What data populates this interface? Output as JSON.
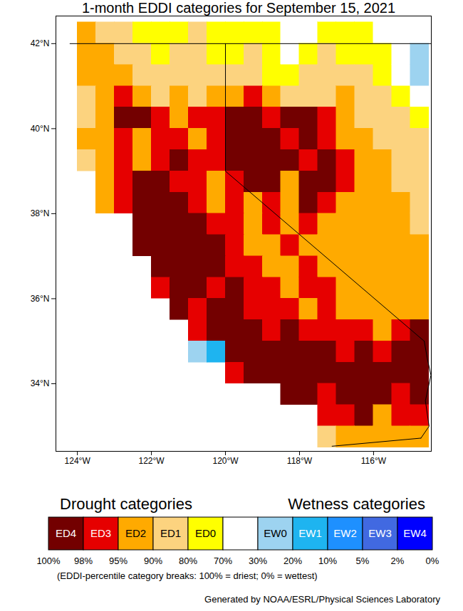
{
  "chart_data": {
    "type": "map",
    "title": "1-month EDDI categories for September 15, 2021",
    "xlim": [
      -124.58,
      -114.44
    ],
    "ylim": [
      32.41,
      42.65
    ],
    "xticks": [
      {
        "value": -124,
        "label": "124°W"
      },
      {
        "value": -122,
        "label": "122°W"
      },
      {
        "value": -120,
        "label": "120°W"
      },
      {
        "value": -118,
        "label": "118°W"
      },
      {
        "value": -116,
        "label": "116°W"
      }
    ],
    "yticks": [
      {
        "value": 34,
        "label": "34°N"
      },
      {
        "value": 36,
        "label": "36°N"
      },
      {
        "value": 38,
        "label": "38°N"
      },
      {
        "value": 40,
        "label": "40°N"
      },
      {
        "value": 42,
        "label": "42°N"
      }
    ],
    "drought_heading": "Drought categories",
    "wetness_heading": "Wetness categories",
    "color_categories": [
      {
        "label": "ED4",
        "color": "#730000"
      },
      {
        "label": "ED3",
        "color": "#e60000"
      },
      {
        "label": "ED2",
        "color": "#ffaa00"
      },
      {
        "label": "ED1",
        "color": "#fcd37f"
      },
      {
        "label": "ED0",
        "color": "#ffff00"
      },
      {
        "label": null,
        "color": "#ffffff"
      },
      {
        "label": "EW0",
        "color": "#9dd3f0"
      },
      {
        "label": "EW1",
        "color": "#1eb4f0"
      },
      {
        "label": "EW2",
        "color": "#1e90ff"
      },
      {
        "label": "EW3",
        "color": "#4169e1"
      },
      {
        "label": "EW4",
        "color": "#0000ff"
      }
    ],
    "category_breaks": [
      "100%",
      "98%",
      "95%",
      "90%",
      "80%",
      "70%",
      "30%",
      "20%",
      "10%",
      "5%",
      "2%",
      "0%"
    ],
    "note": "(EDDI-percentile category breaks: 100% = driest; 0% = wettest)",
    "credit": "Generated by NOAA/ESRL/Physical Sciences Laboratory",
    "cell_lon_range": [
      -124.5,
      -114.5
    ],
    "cell_lat_range": [
      32.5,
      42.5
    ],
    "cells": [
      [
        null,
        2,
        3,
        3,
        4,
        4,
        4,
        3,
        4,
        4,
        4,
        4,
        5,
        5,
        4,
        4,
        4,
        5,
        5,
        5
      ],
      [
        null,
        2,
        2,
        3,
        3,
        4,
        3,
        3,
        4,
        4,
        3,
        4,
        5,
        4,
        3,
        4,
        4,
        4,
        5,
        6
      ],
      [
        null,
        2,
        2,
        2,
        3,
        3,
        3,
        3,
        3,
        3,
        3,
        4,
        4,
        3,
        3,
        3,
        3,
        4,
        5,
        6
      ],
      [
        null,
        3,
        2,
        1,
        2,
        3,
        2,
        3,
        2,
        2,
        1,
        2,
        3,
        3,
        3,
        2,
        3,
        3,
        4,
        5
      ],
      [
        null,
        3,
        2,
        0,
        0,
        1,
        2,
        1,
        1,
        0,
        0,
        1,
        0,
        0,
        1,
        2,
        3,
        3,
        3,
        4
      ],
      [
        null,
        2,
        2,
        1,
        2,
        1,
        1,
        2,
        1,
        0,
        0,
        0,
        1,
        0,
        1,
        2,
        2,
        3,
        3,
        3
      ],
      [
        null,
        3,
        2,
        1,
        2,
        1,
        0,
        1,
        1,
        0,
        0,
        0,
        0,
        1,
        0,
        1,
        2,
        2,
        3,
        3
      ],
      [
        null,
        null,
        2,
        1,
        0,
        0,
        1,
        1,
        2,
        1,
        0,
        0,
        2,
        0,
        0,
        1,
        2,
        2,
        3,
        3
      ],
      [
        null,
        null,
        2,
        1,
        0,
        0,
        0,
        1,
        2,
        1,
        2,
        1,
        2,
        0,
        1,
        2,
        2,
        2,
        2,
        3
      ],
      [
        null,
        null,
        null,
        null,
        0,
        0,
        0,
        0,
        1,
        1,
        2,
        1,
        2,
        1,
        2,
        2,
        2,
        2,
        2,
        3
      ],
      [
        null,
        null,
        null,
        null,
        0,
        0,
        0,
        0,
        0,
        1,
        2,
        2,
        1,
        2,
        2,
        2,
        2,
        2,
        2,
        2
      ],
      [
        null,
        null,
        null,
        null,
        null,
        0,
        0,
        0,
        0,
        1,
        1,
        2,
        2,
        1,
        2,
        2,
        2,
        2,
        2,
        2
      ],
      [
        null,
        null,
        null,
        null,
        null,
        1,
        0,
        0,
        1,
        0,
        1,
        1,
        2,
        1,
        1,
        2,
        2,
        2,
        2,
        2
      ],
      [
        null,
        null,
        null,
        null,
        null,
        null,
        0,
        1,
        0,
        0,
        1,
        1,
        1,
        2,
        1,
        2,
        2,
        2,
        2,
        2
      ],
      [
        null,
        null,
        null,
        null,
        null,
        null,
        null,
        1,
        0,
        0,
        0,
        1,
        0,
        1,
        1,
        1,
        1,
        2,
        1,
        0
      ],
      [
        null,
        null,
        null,
        null,
        null,
        null,
        null,
        6,
        7,
        0,
        0,
        0,
        0,
        0,
        0,
        1,
        0,
        1,
        0,
        0
      ],
      [
        null,
        null,
        null,
        null,
        null,
        null,
        null,
        null,
        null,
        1,
        0,
        0,
        0,
        0,
        0,
        0,
        0,
        0,
        0,
        0
      ],
      [
        null,
        null,
        null,
        null,
        null,
        null,
        null,
        null,
        null,
        null,
        null,
        null,
        0,
        0,
        1,
        0,
        0,
        0,
        1,
        0
      ],
      [
        null,
        null,
        null,
        null,
        null,
        null,
        null,
        null,
        null,
        null,
        null,
        null,
        null,
        null,
        1,
        1,
        0,
        2,
        1,
        1
      ],
      [
        null,
        null,
        null,
        null,
        null,
        null,
        null,
        null,
        null,
        null,
        null,
        null,
        null,
        null,
        3,
        2,
        2,
        2,
        2,
        2
      ]
    ],
    "borders": [
      [
        [
          -124.2,
          42
        ],
        [
          -114.44,
          42
        ]
      ],
      [
        [
          -120,
          42
        ],
        [
          -120,
          39
        ],
        [
          -114.63,
          35.0
        ]
      ],
      [
        [
          -114.63,
          35.0
        ],
        [
          -114.55,
          34.6
        ],
        [
          -114.45,
          34.2
        ],
        [
          -114.6,
          33.6
        ],
        [
          -114.5,
          33.0
        ],
        [
          -114.72,
          32.72
        ]
      ],
      [
        [
          -117.12,
          32.53
        ],
        [
          -114.72,
          32.72
        ]
      ]
    ]
  }
}
